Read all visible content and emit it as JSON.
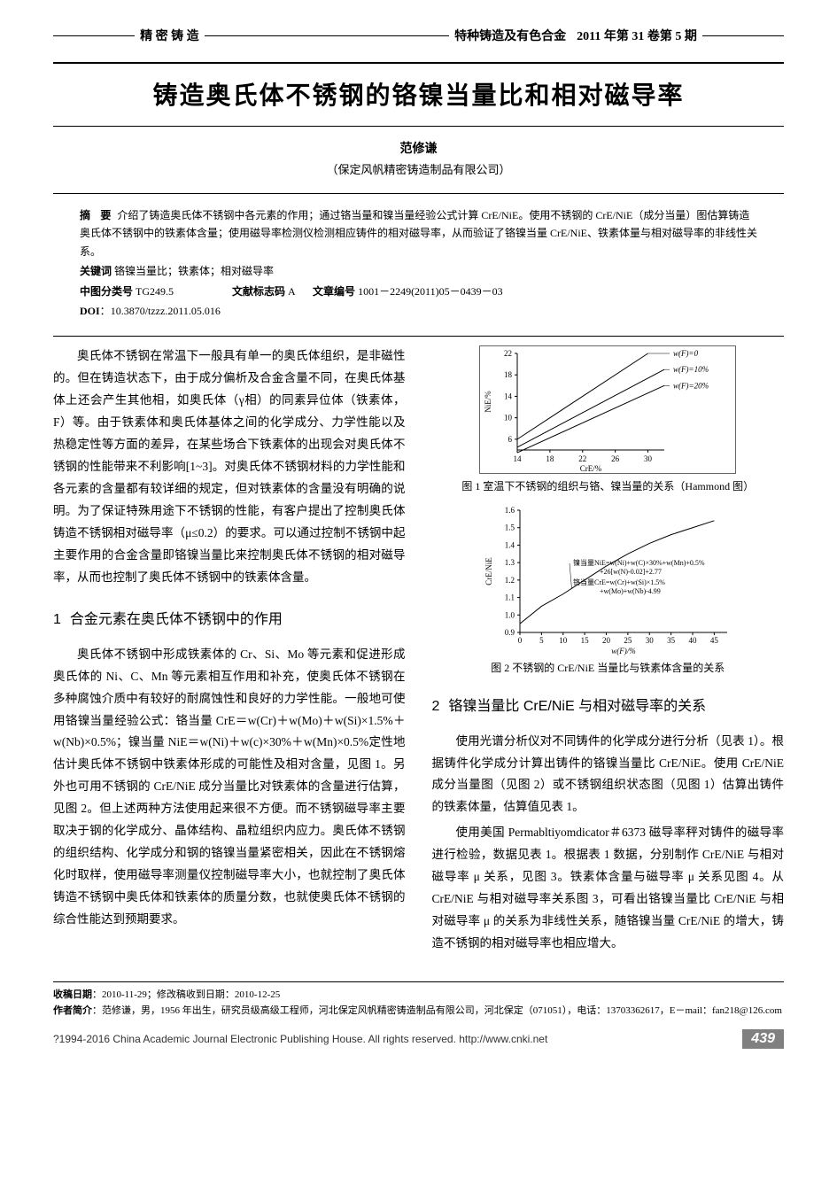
{
  "header": {
    "left_section": "精 密 铸 造",
    "journal": "特种铸造及有色合金",
    "issue": "2011 年第 31 卷第 5 期"
  },
  "title": "铸造奥氏体不锈钢的铬镍当量比和相对磁导率",
  "author": "范修谦",
  "affiliation": "（保定风帆精密铸造制品有限公司）",
  "abstract": {
    "label": "摘  要",
    "text": "介绍了铸造奥氏体不锈钢中各元素的作用；通过铬当量和镍当量经验公式计算 CrE/NiE。使用不锈钢的 CrE/NiE（成分当量）图估算铸造奥氏体不锈钢中的铁素体含量；使用磁导率检测仪检测相应铸件的相对磁导率，从而验证了铬镍当量 CrE/NiE、铁素体量与相对磁导率的非线性关系。"
  },
  "keywords": {
    "label": "关键词",
    "text": "铬镍当量比；铁素体；相对磁导率"
  },
  "clc": {
    "label": "中图分类号",
    "value": "TG249.5"
  },
  "doc_code": {
    "label": "文献标志码",
    "value": "A"
  },
  "article_no": {
    "label": "文章编号",
    "value": "1001－2249(2011)05－0439－03"
  },
  "doi": {
    "label": "DOI",
    "value": "10.3870/tzzz.2011.05.016"
  },
  "body": {
    "intro": "奥氏体不锈钢在常温下一般具有单一的奥氏体组织，是非磁性的。但在铸造状态下，由于成分偏析及合金含量不同，在奥氏体基体上还会产生其他相，如奥氏体（γ相）的同素异位体（铁素体，F）等。由于铁素体和奥氏体基体之间的化学成分、力学性能以及热稳定性等方面的差异，在某些场合下铁素体的出现会对奥氏体不锈钢的性能带来不利影响[1~3]。对奥氏体不锈钢材料的力学性能和各元素的含量都有较详细的规定，但对铁素体的含量没有明确的说明。为了保证特殊用途下不锈钢的性能，有客户提出了控制奥氏体铸造不锈钢相对磁导率（μ≤0.2）的要求。可以通过控制不锈钢中起主要作用的合金含量即铬镍当量比来控制奥氏体不锈钢的相对磁导率，从而也控制了奥氏体不锈钢中的铁素体含量。",
    "s1_title": "合金元素在奥氏体不锈钢中的作用",
    "s1_p1": "奥氏体不锈钢中形成铁素体的 Cr、Si、Mo 等元素和促进形成奥氏体的 Ni、C、Mn 等元素相互作用和补充，使奥氏体不锈钢在多种腐蚀介质中有较好的耐腐蚀性和良好的力学性能。一般地可使用铬镍当量经验公式：铬当量 CrE＝w(Cr)＋w(Mo)＋w(Si)×1.5%＋w(Nb)×0.5%；镍当量 NiE＝w(Ni)＋w(c)×30%＋w(Mn)×0.5%定性地估计奥氏体不锈钢中铁素体形成的可能性及相对含量，见图 1。另外也可用不锈钢的 CrE/NiE 成分当量比对铁素体的含量进行估算，见图 2。但上述两种方法使用起来很不方便。而不锈钢磁导率主要取决于钢的化学成分、晶体结构、晶粒组织内应力。奥氏体不锈钢的组织结构、化学成分和钢的铬镍当量紧密相关，因此在不锈钢熔化时取样，使用磁导率测量仪控制磁导率大小，也就控制了奥氏体铸造不锈钢中奥氏体和铁素体的质量分数，也就使奥氏体不锈钢的综合性能达到预期要求。",
    "fig1_cap": "图 1  室温下不锈钢的组织与铬、镍当量的关系（Hammond 图）",
    "fig2_cap": "图 2  不锈钢的 CrE/NiE 当量比与铁素体含量的关系",
    "s2_title": "铬镍当量比 CrE/NiE 与相对磁导率的关系",
    "s2_p1": "使用光谱分析仪对不同铸件的化学成分进行分析（见表 1）。根据铸件化学成分计算出铸件的铬镍当量比 CrE/NiE。使用 CrE/NiE 成分当量图（见图 2）或不锈钢组织状态图（见图 1）估算出铸件的铁素体量，估算值见表 1。",
    "s2_p2": "使用美国 Permabltiyomdicator＃6373 磁导率秤对铸件的磁导率进行检验，数据见表 1。根据表 1 数据，分别制作 CrE/NiE 与相对磁导率 μ 关系，见图 3。铁素体含量与磁导率 μ 关系见图 4。从 CrE/NiE 与相对磁导率关系图 3，可看出铬镍当量比 CrE/NiE 与相对磁导率 μ 的关系为非线性关系，随铬镍当量 CrE/NiE 的增大，铸造不锈钢的相对磁导率也相应增大。"
  },
  "figure1": {
    "type": "line",
    "xlabel": "CrE/%",
    "ylabel": "NiE/%",
    "xlim": [
      14,
      32
    ],
    "ylim": [
      4,
      22
    ],
    "xticks": [
      14,
      18,
      22,
      26,
      30
    ],
    "yticks": [
      6,
      10,
      14,
      18,
      22
    ],
    "line_color": "#000000",
    "line_width": 1,
    "series": [
      {
        "label": "w(F)=0",
        "points": [
          [
            14,
            6
          ],
          [
            30,
            22
          ]
        ]
      },
      {
        "label": "w(F)=10%",
        "points": [
          [
            14,
            4.5
          ],
          [
            32,
            19
          ]
        ]
      },
      {
        "label": "w(F)=20%",
        "points": [
          [
            14,
            3.5
          ],
          [
            32,
            16
          ]
        ]
      }
    ],
    "label_fontsize": 9
  },
  "figure2": {
    "type": "line",
    "xlabel": "w(F)/%",
    "ylabel": "CrE/NiE",
    "xlim": [
      0,
      48
    ],
    "ylim": [
      0.9,
      1.6
    ],
    "xticks": [
      0,
      5,
      10,
      15,
      20,
      25,
      30,
      35,
      40,
      45
    ],
    "yticks": [
      0.9,
      1.0,
      1.1,
      1.2,
      1.3,
      1.4,
      1.5,
      1.6
    ],
    "curve_points": [
      [
        0,
        0.95
      ],
      [
        5,
        1.05
      ],
      [
        10,
        1.12
      ],
      [
        15,
        1.2
      ],
      [
        20,
        1.28
      ],
      [
        25,
        1.35
      ],
      [
        30,
        1.41
      ],
      [
        35,
        1.46
      ],
      [
        40,
        1.5
      ],
      [
        45,
        1.54
      ]
    ],
    "line_color": "#000000",
    "line_width": 1,
    "annot1": "镍当量NiE=w(Ni)+w(C)×30%+w(Mn)+0.5%",
    "annot2": "+26[w(N)-0.02]+2.77",
    "annot3": "铬当量CrE=w(Cr)+w(Si)×1.5%",
    "annot4": "+w(Mo)+w(Nb)-4.99",
    "label_fontsize": 9
  },
  "footer": {
    "received_label": "收稿日期",
    "received": "2010-11-29；修改稿收到日期：2010-12-25",
    "author_label": "作者简介",
    "author_bio": "范修谦，男，1956 年出生，研究员级高级工程师，河北保定风帆精密铸造制品有限公司，河北保定（071051），电话：13703362617，E－mail：fan218@126.com",
    "copyright": "?1994-2016 China Academic Journal Electronic Publishing House. All rights reserved.   http://www.cnki.net",
    "page": "439"
  }
}
